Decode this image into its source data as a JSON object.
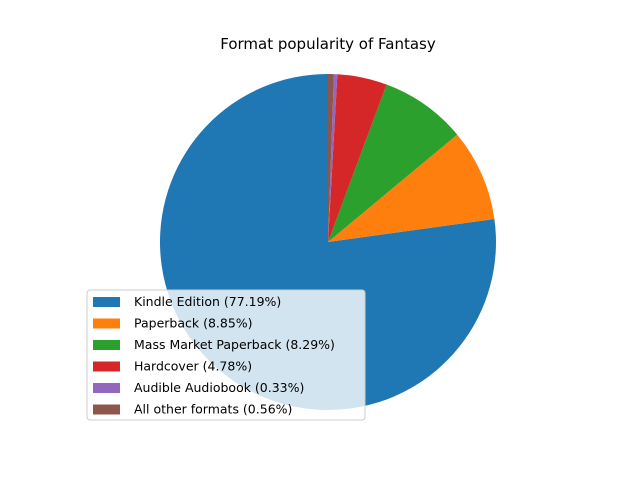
{
  "chart_data": {
    "type": "pie",
    "title": "Format popularity of Fantasy",
    "slices": [
      {
        "label": "Kindle Edition (77.19%)",
        "value": 77.19,
        "color": "#1f77b4"
      },
      {
        "label": "Paperback (8.85%)",
        "value": 8.85,
        "color": "#ff7f0e"
      },
      {
        "label": "Mass Market Paperback (8.29%)",
        "value": 8.29,
        "color": "#2ca02c"
      },
      {
        "label": "Hardcover (4.78%)",
        "value": 4.78,
        "color": "#d62728"
      },
      {
        "label": "Audible Audiobook (0.33%)",
        "value": 0.33,
        "color": "#9467bd"
      },
      {
        "label": "All other formats (0.56%)",
        "value": 0.56,
        "color": "#8c564b"
      }
    ],
    "start_angle_deg": 90,
    "direction": "counterclockwise",
    "legend_position": "lower-left"
  }
}
